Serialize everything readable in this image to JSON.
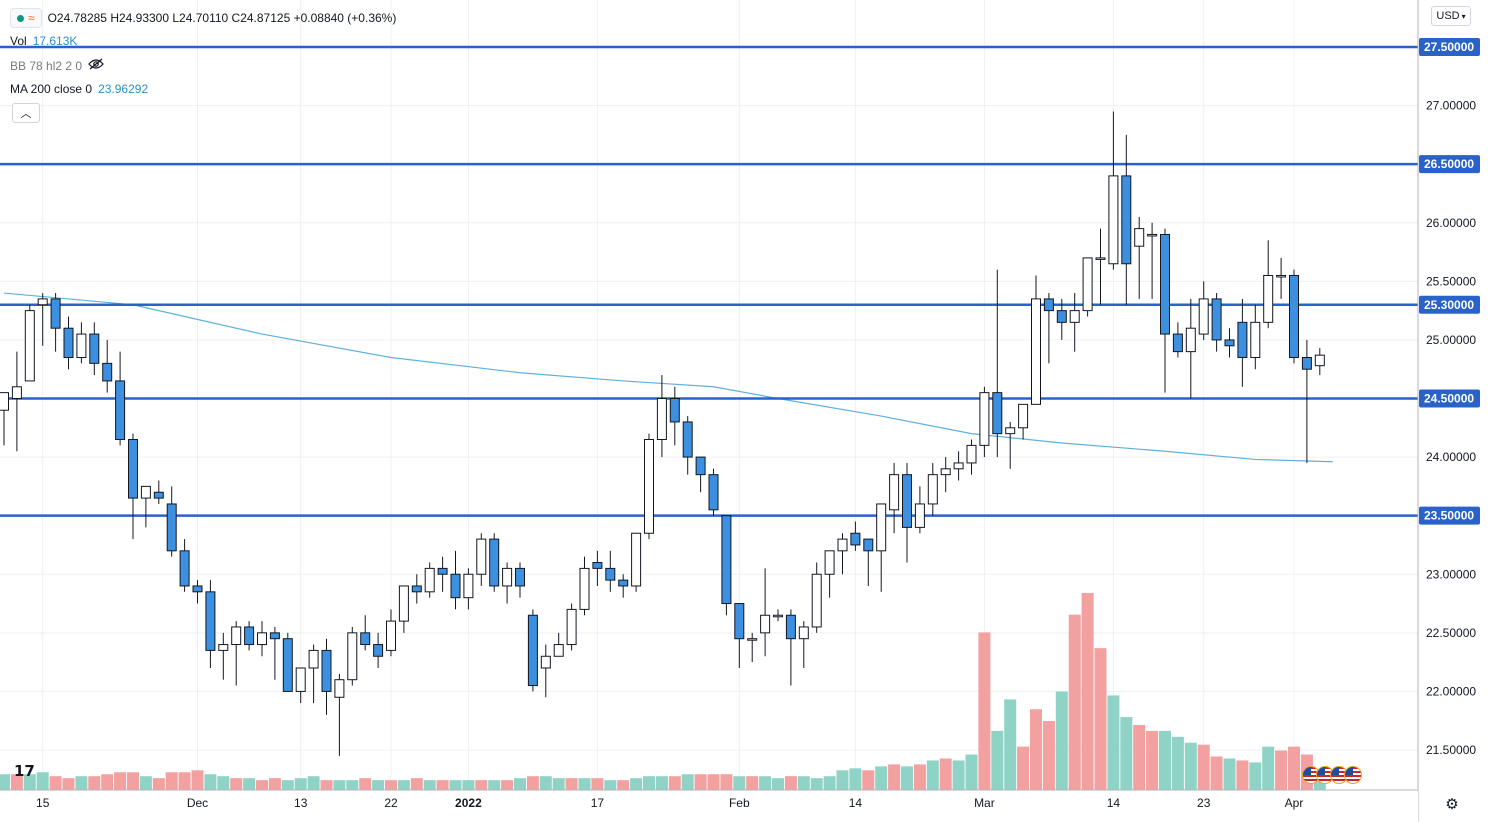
{
  "legend": {
    "ohlc": "O24.78285  H24.93300  L24.70110  C24.87125  +0.08840  (+0.36%)",
    "vol_label": "Vol",
    "vol_value": "17.613K",
    "bb_label": "BB 78 hl2 2 0",
    "ma_label": "MA 200 close 0",
    "ma_value": "23.96292"
  },
  "currency_button": "USD",
  "logo_text": "17",
  "colors": {
    "up": "#ffffff",
    "down": "#3d8fe0",
    "candle_border": "#131722",
    "hline": "#2962c8",
    "ma": "#5fb0e0",
    "vol_up": "#8fd3c6",
    "vol_down": "#f2a0a0",
    "grid": "#eef0f3",
    "price_label_bg": "#2962c8"
  },
  "icons": [
    "eye-off-icon",
    "chevron-up-icon",
    "chevron-down-icon",
    "gear-icon",
    "flag-icon"
  ],
  "chart_data": {
    "type": "candlestick",
    "ylim": [
      21.1,
      27.8
    ],
    "y_ticks": [
      21.5,
      22.0,
      22.5,
      23.0,
      23.5,
      24.0,
      24.5,
      25.0,
      25.5,
      26.0,
      26.5,
      27.0,
      27.5
    ],
    "y_tick_labels": [
      "21.50000",
      "22.00000",
      "22.50000",
      "23.00000",
      "23.50000",
      "24.00000",
      "24.50000",
      "25.00000",
      "25.50000",
      "26.00000",
      "26.50000",
      "27.00000",
      "27.50000"
    ],
    "horizontal_levels": [
      27.5,
      26.5,
      25.3,
      24.5,
      23.5
    ],
    "horizontal_level_labels": [
      "27.50000",
      "26.50000",
      "25.30000",
      "24.50000",
      "23.50000"
    ],
    "x_tick_labels": [
      {
        "label": "15",
        "i": 3
      },
      {
        "label": "Dec",
        "i": 15
      },
      {
        "label": "13",
        "i": 23
      },
      {
        "label": "22",
        "i": 30
      },
      {
        "label": "2022",
        "i": 36
      },
      {
        "label": "17",
        "i": 46
      },
      {
        "label": "Feb",
        "i": 57
      },
      {
        "label": "14",
        "i": 66
      },
      {
        "label": "Mar",
        "i": 76
      },
      {
        "label": "14",
        "i": 86
      },
      {
        "label": "23",
        "i": 93
      },
      {
        "label": "Apr",
        "i": 100
      }
    ],
    "candles": [
      [
        24.4,
        24.55,
        24.1,
        24.55
      ],
      [
        24.5,
        24.9,
        24.05,
        24.6
      ],
      [
        24.65,
        25.3,
        24.65,
        25.25
      ],
      [
        25.3,
        25.4,
        24.95,
        25.35
      ],
      [
        25.35,
        25.4,
        24.9,
        25.1
      ],
      [
        25.1,
        25.2,
        24.75,
        24.85
      ],
      [
        24.85,
        25.15,
        24.8,
        25.05
      ],
      [
        25.05,
        25.15,
        24.7,
        24.8
      ],
      [
        24.8,
        25.0,
        24.55,
        24.65
      ],
      [
        24.65,
        24.9,
        24.1,
        24.15
      ],
      [
        24.15,
        24.2,
        23.3,
        23.65
      ],
      [
        23.65,
        23.75,
        23.4,
        23.75
      ],
      [
        23.7,
        23.8,
        23.6,
        23.65
      ],
      [
        23.6,
        23.75,
        23.15,
        23.2
      ],
      [
        23.2,
        23.3,
        22.85,
        22.9
      ],
      [
        22.9,
        22.95,
        22.75,
        22.85
      ],
      [
        22.85,
        22.95,
        22.2,
        22.35
      ],
      [
        22.35,
        22.5,
        22.1,
        22.4
      ],
      [
        22.4,
        22.6,
        22.05,
        22.55
      ],
      [
        22.55,
        22.6,
        22.35,
        22.4
      ],
      [
        22.4,
        22.6,
        22.3,
        22.5
      ],
      [
        22.5,
        22.55,
        22.1,
        22.45
      ],
      [
        22.45,
        22.5,
        22.05,
        22.0
      ],
      [
        22.0,
        22.2,
        21.9,
        22.2
      ],
      [
        22.2,
        22.4,
        21.9,
        22.35
      ],
      [
        22.35,
        22.45,
        21.8,
        22.0
      ],
      [
        21.95,
        22.15,
        21.45,
        22.1
      ],
      [
        22.1,
        22.55,
        22.05,
        22.5
      ],
      [
        22.5,
        22.65,
        22.35,
        22.4
      ],
      [
        22.4,
        22.5,
        22.2,
        22.3
      ],
      [
        22.35,
        22.7,
        22.3,
        22.6
      ],
      [
        22.6,
        22.9,
        22.5,
        22.9
      ],
      [
        22.9,
        23.0,
        22.75,
        22.85
      ],
      [
        22.85,
        23.1,
        22.8,
        23.05
      ],
      [
        23.05,
        23.15,
        22.85,
        23.0
      ],
      [
        23.0,
        23.2,
        22.7,
        22.8
      ],
      [
        22.8,
        23.05,
        22.7,
        23.0
      ],
      [
        23.0,
        23.35,
        22.9,
        23.3
      ],
      [
        23.3,
        23.35,
        22.85,
        22.9
      ],
      [
        22.9,
        23.1,
        22.75,
        23.05
      ],
      [
        23.05,
        23.1,
        22.8,
        22.9
      ],
      [
        22.65,
        22.7,
        22.0,
        22.05
      ],
      [
        22.2,
        22.4,
        21.95,
        22.3
      ],
      [
        22.3,
        22.5,
        22.3,
        22.4
      ],
      [
        22.4,
        22.75,
        22.35,
        22.7
      ],
      [
        22.7,
        23.15,
        22.65,
        23.05
      ],
      [
        23.1,
        23.2,
        22.9,
        23.05
      ],
      [
        23.05,
        23.2,
        22.85,
        22.95
      ],
      [
        22.95,
        23.0,
        22.8,
        22.9
      ],
      [
        22.9,
        23.35,
        22.85,
        23.35
      ],
      [
        23.35,
        24.2,
        23.3,
        24.15
      ],
      [
        24.15,
        24.7,
        24.0,
        24.5
      ],
      [
        24.5,
        24.6,
        24.1,
        24.3
      ],
      [
        24.3,
        24.35,
        23.85,
        24.0
      ],
      [
        24.0,
        24.0,
        23.7,
        23.85
      ],
      [
        23.85,
        23.9,
        23.5,
        23.55
      ],
      [
        23.5,
        23.5,
        22.65,
        22.75
      ],
      [
        22.75,
        22.75,
        22.2,
        22.45
      ],
      [
        22.45,
        22.5,
        22.25,
        22.45
      ],
      [
        22.5,
        23.05,
        22.3,
        22.65
      ],
      [
        22.65,
        22.7,
        22.6,
        22.65
      ],
      [
        22.65,
        22.7,
        22.05,
        22.45
      ],
      [
        22.45,
        22.6,
        22.2,
        22.55
      ],
      [
        22.55,
        23.1,
        22.5,
        23.0
      ],
      [
        23.0,
        23.2,
        22.8,
        23.2
      ],
      [
        23.2,
        23.35,
        23.0,
        23.3
      ],
      [
        23.35,
        23.45,
        23.2,
        23.25
      ],
      [
        23.3,
        23.3,
        22.9,
        23.2
      ],
      [
        23.2,
        23.6,
        22.85,
        23.6
      ],
      [
        23.55,
        23.95,
        23.35,
        23.85
      ],
      [
        23.85,
        23.95,
        23.1,
        23.4
      ],
      [
        23.4,
        23.75,
        23.35,
        23.6
      ],
      [
        23.6,
        23.95,
        23.5,
        23.85
      ],
      [
        23.85,
        24.0,
        23.7,
        23.9
      ],
      [
        23.9,
        24.05,
        23.8,
        23.95
      ],
      [
        23.95,
        24.15,
        23.85,
        24.1
      ],
      [
        24.1,
        24.6,
        24.0,
        24.55
      ],
      [
        24.55,
        25.6,
        24.0,
        24.2
      ],
      [
        24.2,
        24.3,
        23.9,
        24.25
      ],
      [
        24.25,
        24.45,
        24.15,
        24.45
      ],
      [
        24.45,
        25.55,
        24.45,
        25.35
      ],
      [
        25.35,
        25.4,
        24.8,
        25.25
      ],
      [
        25.25,
        25.35,
        25.0,
        25.15
      ],
      [
        25.15,
        25.4,
        24.9,
        25.25
      ],
      [
        25.25,
        25.7,
        25.2,
        25.7
      ],
      [
        25.7,
        25.95,
        25.3,
        25.7
      ],
      [
        25.65,
        26.95,
        25.6,
        26.4
      ],
      [
        26.4,
        26.75,
        25.3,
        25.65
      ],
      [
        25.8,
        26.05,
        25.35,
        25.95
      ],
      [
        25.9,
        26.0,
        25.35,
        25.9
      ],
      [
        25.9,
        25.95,
        24.55,
        25.05
      ],
      [
        25.05,
        25.15,
        24.85,
        24.9
      ],
      [
        24.9,
        25.35,
        24.5,
        25.1
      ],
      [
        25.05,
        25.5,
        25.0,
        25.35
      ],
      [
        25.35,
        25.4,
        24.9,
        25.0
      ],
      [
        25.0,
        25.1,
        24.85,
        24.95
      ],
      [
        25.15,
        25.35,
        24.6,
        24.85
      ],
      [
        24.85,
        25.3,
        24.75,
        25.15
      ],
      [
        25.15,
        25.85,
        25.1,
        25.55
      ],
      [
        25.55,
        25.7,
        25.35,
        25.55
      ],
      [
        25.55,
        25.6,
        24.8,
        24.85
      ],
      [
        24.85,
        25.0,
        23.95,
        24.75
      ],
      [
        24.78,
        24.93,
        24.7,
        24.87
      ]
    ],
    "volume": [
      [
        0.08,
        1
      ],
      [
        0.08,
        0
      ],
      [
        0.08,
        1
      ],
      [
        0.09,
        1
      ],
      [
        0.07,
        0
      ],
      [
        0.06,
        0
      ],
      [
        0.07,
        1
      ],
      [
        0.07,
        0
      ],
      [
        0.08,
        0
      ],
      [
        0.09,
        0
      ],
      [
        0.09,
        0
      ],
      [
        0.07,
        1
      ],
      [
        0.06,
        0
      ],
      [
        0.09,
        0
      ],
      [
        0.09,
        0
      ],
      [
        0.1,
        0
      ],
      [
        0.08,
        1
      ],
      [
        0.07,
        1
      ],
      [
        0.06,
        0
      ],
      [
        0.06,
        1
      ],
      [
        0.05,
        0
      ],
      [
        0.06,
        0
      ],
      [
        0.05,
        1
      ],
      [
        0.06,
        1
      ],
      [
        0.07,
        1
      ],
      [
        0.05,
        0
      ],
      [
        0.05,
        1
      ],
      [
        0.05,
        1
      ],
      [
        0.06,
        0
      ],
      [
        0.05,
        1
      ],
      [
        0.05,
        0
      ],
      [
        0.05,
        1
      ],
      [
        0.06,
        0
      ],
      [
        0.05,
        1
      ],
      [
        0.05,
        0
      ],
      [
        0.05,
        1
      ],
      [
        0.05,
        1
      ],
      [
        0.05,
        0
      ],
      [
        0.05,
        1
      ],
      [
        0.05,
        0
      ],
      [
        0.06,
        1
      ],
      [
        0.07,
        0
      ],
      [
        0.07,
        1
      ],
      [
        0.06,
        1
      ],
      [
        0.06,
        0
      ],
      [
        0.06,
        1
      ],
      [
        0.06,
        0
      ],
      [
        0.05,
        1
      ],
      [
        0.05,
        0
      ],
      [
        0.06,
        1
      ],
      [
        0.07,
        1
      ],
      [
        0.07,
        1
      ],
      [
        0.07,
        0
      ],
      [
        0.08,
        1
      ],
      [
        0.08,
        0
      ],
      [
        0.08,
        0
      ],
      [
        0.08,
        0
      ],
      [
        0.07,
        1
      ],
      [
        0.07,
        0
      ],
      [
        0.07,
        1
      ],
      [
        0.06,
        1
      ],
      [
        0.07,
        0
      ],
      [
        0.07,
        1
      ],
      [
        0.06,
        1
      ],
      [
        0.07,
        1
      ],
      [
        0.1,
        1
      ],
      [
        0.11,
        1
      ],
      [
        0.1,
        0
      ],
      [
        0.12,
        1
      ],
      [
        0.13,
        0
      ],
      [
        0.12,
        1
      ],
      [
        0.13,
        0
      ],
      [
        0.15,
        1
      ],
      [
        0.16,
        0
      ],
      [
        0.15,
        1
      ],
      [
        0.18,
        1
      ],
      [
        0.8,
        0
      ],
      [
        0.3,
        1
      ],
      [
        0.46,
        1
      ],
      [
        0.22,
        0
      ],
      [
        0.41,
        0
      ],
      [
        0.35,
        0
      ],
      [
        0.5,
        1
      ],
      [
        0.89,
        0
      ],
      [
        1.0,
        0
      ],
      [
        0.72,
        0
      ],
      [
        0.48,
        1
      ],
      [
        0.37,
        1
      ],
      [
        0.33,
        0
      ],
      [
        0.3,
        0
      ],
      [
        0.3,
        1
      ],
      [
        0.27,
        1
      ],
      [
        0.24,
        1
      ],
      [
        0.23,
        0
      ],
      [
        0.17,
        0
      ],
      [
        0.16,
        1
      ],
      [
        0.15,
        0
      ],
      [
        0.14,
        1
      ],
      [
        0.22,
        1
      ],
      [
        0.2,
        0
      ],
      [
        0.22,
        0
      ],
      [
        0.18,
        0
      ],
      [
        0.08,
        1
      ]
    ],
    "ma200": [
      [
        0,
        25.4
      ],
      [
        10,
        25.3
      ],
      [
        20,
        25.05
      ],
      [
        30,
        24.85
      ],
      [
        40,
        24.72
      ],
      [
        48,
        24.65
      ],
      [
        55,
        24.6
      ],
      [
        60,
        24.5
      ],
      [
        68,
        24.35
      ],
      [
        75,
        24.2
      ],
      [
        82,
        24.12
      ],
      [
        90,
        24.05
      ],
      [
        97,
        23.98
      ],
      [
        103,
        23.96
      ]
    ]
  }
}
